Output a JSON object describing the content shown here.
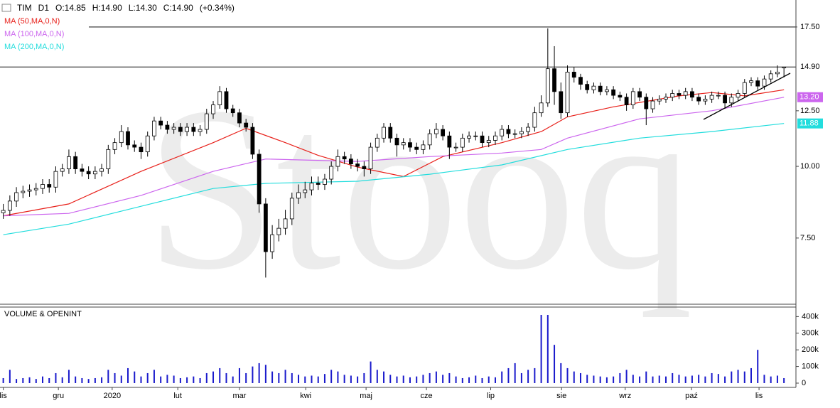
{
  "chart_data": {
    "type": "candlestick",
    "header": [
      "TIM",
      "D1",
      "O:14.85",
      "H:14.90",
      "L:14.30",
      "C:14.90",
      "(+0.34%)"
    ],
    "watermark": "Stooq",
    "up_color": "#ffffff",
    "down_color": "#000000",
    "log_scale": true,
    "ylim": [
      5.75,
      19.5
    ],
    "yticks": [
      {
        "value": 17.5,
        "label": "17.50"
      },
      {
        "value": 12.5,
        "label": "12.50"
      },
      {
        "value": 10,
        "label": "10.00"
      },
      {
        "value": 7.5,
        "label": "7.50"
      }
    ],
    "hlines": [
      {
        "value": 17.5,
        "label": "17.50"
      },
      {
        "value": 14.9,
        "label": "14.90"
      }
    ],
    "xlim": [
      -0.5,
      120.5
    ],
    "xticks": [
      {
        "value": 0,
        "label": "lis"
      },
      {
        "value": 8.4,
        "label": "gru"
      },
      {
        "value": 16.6,
        "label": "2020"
      },
      {
        "value": 26.6,
        "label": "lut"
      },
      {
        "value": 36,
        "label": "mar"
      },
      {
        "value": 46.1,
        "label": "kwi"
      },
      {
        "value": 55.3,
        "label": "maj"
      },
      {
        "value": 64.5,
        "label": "cze"
      },
      {
        "value": 74.3,
        "label": "lip"
      },
      {
        "value": 85.1,
        "label": "sie"
      },
      {
        "value": 94.8,
        "label": "wrz"
      },
      {
        "value": 104.9,
        "label": "paź"
      },
      {
        "value": 115.2,
        "label": "lis"
      }
    ],
    "open": [
      8.3,
      8.38,
      8.7,
      9.0,
      9.05,
      9.1,
      9.15,
      9.3,
      9.2,
      9.8,
      9.9,
      10.4,
      9.9,
      9.8,
      9.7,
      9.8,
      9.9,
      10.7,
      11.0,
      11.5,
      10.9,
      10.8,
      10.6,
      11.3,
      12.0,
      11.8,
      11.6,
      11.7,
      11.5,
      11.7,
      11.5,
      11.6,
      12.35,
      12.8,
      13.5,
      12.6,
      12.4,
      11.9,
      11.7,
      10.5,
      8.6,
      7.1,
      7.6,
      7.8,
      8.1,
      8.8,
      9.0,
      9.1,
      9.35,
      9.3,
      9.5,
      10.0,
      10.4,
      10.3,
      10.1,
      10.0,
      9.9,
      10.8,
      11.2,
      11.7,
      11.2,
      10.9,
      11.0,
      10.8,
      10.7,
      10.9,
      11.4,
      11.6,
      11.3,
      10.8,
      10.8,
      11.2,
      11.3,
      11.3,
      11.0,
      11.1,
      11.3,
      11.6,
      11.4,
      11.4,
      11.5,
      11.7,
      12.4,
      12.9,
      14.8,
      13.5,
      12.4,
      14.6,
      14.3,
      13.9,
      13.6,
      13.8,
      13.5,
      13.6,
      13.3,
      13.2,
      12.8,
      13.5,
      13.2,
      12.6,
      13.0,
      13.1,
      13.2,
      13.4,
      13.3,
      13.5,
      13.2,
      13.0,
      13.1,
      13.3,
      13.3,
      12.9,
      13.2,
      13.4,
      14.0,
      14.1,
      13.8,
      14.2,
      14.5,
      14.85
    ],
    "high": [
      8.6,
      8.9,
      9.2,
      9.25,
      9.3,
      9.35,
      9.5,
      9.5,
      10.0,
      10.1,
      10.7,
      10.6,
      10.1,
      10.0,
      10.0,
      10.1,
      10.9,
      11.2,
      11.8,
      11.7,
      11.1,
      11.0,
      11.5,
      12.2,
      12.2,
      12.0,
      11.9,
      11.9,
      11.9,
      11.9,
      11.8,
      12.6,
      13.0,
      13.8,
      13.7,
      12.8,
      12.6,
      12.1,
      11.9,
      10.7,
      8.8,
      7.9,
      8.1,
      8.4,
      9.0,
      9.3,
      9.4,
      9.6,
      9.6,
      9.7,
      10.2,
      10.7,
      10.6,
      10.5,
      10.3,
      10.2,
      11.0,
      11.4,
      11.9,
      11.9,
      11.4,
      11.2,
      11.2,
      11.0,
      11.1,
      11.6,
      11.9,
      11.8,
      11.5,
      11.0,
      11.4,
      11.5,
      11.5,
      11.5,
      11.3,
      11.5,
      11.8,
      11.8,
      11.6,
      11.7,
      11.9,
      12.7,
      13.3,
      17.4,
      16.2,
      14.0,
      15.0,
      14.9,
      14.5,
      14.1,
      14.0,
      14.0,
      13.8,
      13.8,
      13.5,
      13.4,
      13.7,
      13.7,
      13.4,
      13.2,
      13.3,
      13.4,
      13.6,
      13.6,
      13.7,
      13.7,
      13.4,
      13.3,
      13.5,
      13.5,
      13.5,
      13.4,
      13.6,
      14.2,
      14.3,
      14.3,
      14.4,
      14.7,
      15.0,
      14.9
    ],
    "low": [
      8.1,
      8.2,
      8.5,
      8.8,
      8.85,
      8.9,
      8.95,
      9.0,
      9.0,
      9.6,
      9.7,
      9.7,
      9.6,
      9.5,
      9.5,
      9.6,
      9.7,
      10.5,
      10.8,
      10.7,
      10.6,
      10.3,
      10.4,
      11.1,
      11.6,
      11.4,
      11.4,
      11.3,
      11.3,
      11.3,
      11.3,
      11.4,
      12.1,
      12.6,
      12.4,
      12.2,
      11.7,
      11.5,
      10.3,
      8.3,
      6.4,
      6.9,
      7.4,
      7.6,
      7.9,
      8.6,
      8.8,
      8.9,
      9.1,
      9.1,
      9.3,
      9.8,
      10.1,
      9.9,
      9.8,
      9.6,
      9.7,
      10.6,
      11.0,
      11.0,
      10.4,
      10.7,
      10.6,
      10.5,
      10.5,
      10.7,
      11.2,
      11.1,
      10.3,
      10.6,
      10.6,
      11.0,
      11.1,
      10.8,
      10.8,
      10.9,
      11.1,
      11.2,
      11.2,
      11.2,
      11.3,
      11.5,
      12.2,
      12.7,
      12.8,
      12.1,
      12.2,
      14.0,
      13.6,
      13.4,
      13.4,
      13.3,
      13.3,
      13.1,
      13.0,
      12.5,
      12.6,
      13.0,
      11.8,
      12.4,
      12.8,
      12.9,
      13.0,
      13.1,
      13.1,
      13.0,
      12.8,
      12.8,
      12.9,
      13.1,
      12.6,
      12.7,
      13.0,
      13.2,
      13.8,
      13.6,
      13.6,
      14.0,
      14.3,
      14.3
    ],
    "close": [
      8.38,
      8.7,
      9.0,
      9.05,
      9.1,
      9.15,
      9.3,
      9.2,
      9.8,
      9.9,
      10.4,
      9.9,
      9.8,
      9.7,
      9.8,
      9.9,
      10.7,
      11.0,
      11.5,
      10.9,
      10.8,
      10.6,
      11.3,
      12.0,
      11.8,
      11.6,
      11.7,
      11.5,
      11.7,
      11.5,
      11.6,
      12.35,
      12.8,
      13.5,
      12.6,
      12.4,
      11.9,
      11.7,
      10.5,
      8.6,
      7.1,
      7.6,
      7.8,
      8.1,
      8.8,
      9.0,
      9.1,
      9.35,
      9.3,
      9.5,
      10.0,
      10.4,
      10.3,
      10.1,
      10.0,
      9.9,
      10.8,
      11.2,
      11.7,
      11.2,
      10.9,
      11.0,
      10.8,
      10.7,
      10.9,
      11.4,
      11.6,
      11.3,
      10.8,
      10.8,
      11.2,
      11.3,
      11.3,
      11.0,
      11.1,
      11.3,
      11.6,
      11.4,
      11.4,
      11.5,
      11.7,
      12.4,
      12.9,
      14.8,
      13.5,
      12.4,
      14.6,
      14.3,
      13.9,
      13.6,
      13.8,
      13.5,
      13.6,
      13.3,
      13.2,
      12.8,
      13.5,
      13.2,
      12.6,
      13.0,
      13.1,
      13.2,
      13.4,
      13.3,
      13.5,
      13.2,
      13.0,
      13.1,
      13.3,
      13.3,
      12.9,
      13.2,
      13.4,
      14.0,
      14.1,
      13.8,
      14.2,
      14.5,
      14.6,
      14.9
    ],
    "overlays": [
      {
        "name": "MA (50,MA,0,N)",
        "color": "#e8201a",
        "x": [
          0,
          10,
          21,
          32,
          37,
          43,
          48,
          54,
          61,
          67,
          76,
          82,
          86,
          93,
          103,
          108,
          113,
          119
        ],
        "values": [
          8.2,
          8.6,
          9.8,
          11.0,
          11.65,
          11.0,
          10.45,
          9.97,
          9.6,
          10.4,
          11.0,
          11.5,
          12.2,
          12.7,
          13.27,
          13.45,
          13.27,
          13.6
        ]
      },
      {
        "name": "MA (100,MA,0,N)",
        "color": "#cc66ee",
        "x": [
          0,
          10,
          21,
          32,
          40,
          54,
          65,
          76,
          82,
          86,
          97,
          108,
          119
        ],
        "values": [
          8.2,
          8.28,
          8.9,
          9.8,
          10.3,
          10.2,
          10.4,
          10.55,
          10.7,
          11.2,
          12.1,
          12.5,
          13.2
        ],
        "end_label": "13.20"
      },
      {
        "name": "MA (200,MA,0,N)",
        "color": "#22dddd",
        "x": [
          0,
          10,
          21,
          32,
          40,
          54,
          65,
          76,
          86,
          97,
          108,
          119
        ],
        "values": [
          7.6,
          7.93,
          8.52,
          9.15,
          9.34,
          9.42,
          9.69,
          10.06,
          10.7,
          11.2,
          11.5,
          11.88
        ],
        "end_label": "11.88"
      }
    ],
    "volume": {
      "title": "VOLUME & OPENINT",
      "color": "#1a1acc",
      "ylim": [
        0,
        440000
      ],
      "yticks": [
        0,
        {
          "value": 100000,
          "label": "100k"
        },
        {
          "value": 200000,
          "label": "200k"
        },
        {
          "value": 300000,
          "label": "300k"
        },
        {
          "value": 400000,
          "label": "400k"
        }
      ],
      "values": [
        30000,
        80000,
        25000,
        30000,
        35000,
        25000,
        40000,
        30000,
        60000,
        35000,
        80000,
        40000,
        30000,
        25000,
        30000,
        35000,
        80000,
        60000,
        45000,
        90000,
        70000,
        40000,
        60000,
        80000,
        40000,
        50000,
        45000,
        30000,
        35000,
        40000,
        30000,
        60000,
        70000,
        90000,
        60000,
        40000,
        90000,
        60000,
        100000,
        120000,
        110000,
        70000,
        60000,
        80000,
        60000,
        50000,
        40000,
        45000,
        40000,
        55000,
        80000,
        70000,
        50000,
        45000,
        40000,
        60000,
        130000,
        80000,
        70000,
        50000,
        40000,
        45000,
        35000,
        40000,
        50000,
        60000,
        70000,
        50000,
        60000,
        40000,
        30000,
        35000,
        45000,
        30000,
        40000,
        35000,
        70000,
        90000,
        120000,
        60000,
        80000,
        90000,
        410000,
        410000,
        230000,
        120000,
        90000,
        70000,
        60000,
        50000,
        45000,
        40000,
        35000,
        40000,
        60000,
        80000,
        50000,
        40000,
        70000,
        40000,
        45000,
        40000,
        60000,
        50000,
        40000,
        45000,
        50000,
        40000,
        60000,
        55000,
        40000,
        70000,
        80000,
        70000,
        90000,
        200000,
        50000,
        40000,
        45000,
        30000
      ]
    }
  }
}
